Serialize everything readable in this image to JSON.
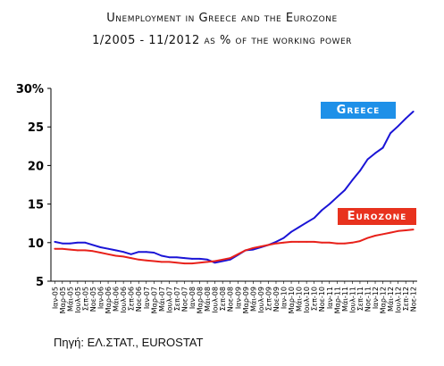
{
  "title_line1": "Unemployment in Greece and the Eurozone",
  "title_line2": "1/2005 - 11/2012 as % of the working power",
  "source": "Πηγή: ΕΛ.ΣΤΑΤ., EUROSTAT",
  "colors": {
    "greece": "#1a14d6",
    "eurozone": "#e8211a",
    "greece_badge": "#1e90e8",
    "eurozone_badge": "#e8321e"
  },
  "chart_data": {
    "type": "line",
    "ylim": [
      5,
      30
    ],
    "yticks": [
      "5",
      "10",
      "15",
      "20",
      "25",
      "30%"
    ],
    "grid": false,
    "x_labels": [
      "Ιαν-05",
      "Μαρ-05",
      "Μάι-05",
      "Ιουλ-05",
      "Σεπ-05",
      "Νοε-05",
      "Ιαν-06",
      "Μαρ-06",
      "Μάι-06",
      "Ιουλ-06",
      "Σεπ-06",
      "Νοε-06",
      "Ιαν-07",
      "Μαρ-07",
      "Μάι-07",
      "Ιουλ-07",
      "Σεπ-07",
      "Νοε-07",
      "Ιαν-08",
      "Μαρ-08",
      "Μάι-08",
      "Ιουλ-08",
      "Σεπ-08",
      "Νοε-08",
      "Ιαν-09",
      "Μαρ-09",
      "Μάι-09",
      "Ιουλ-09",
      "Σεπ-09",
      "Νοε-09",
      "Ιαν-10",
      "Μαρ-10",
      "Μάι-10",
      "Ιουλ-10",
      "Σεπ-10",
      "Νοε-10",
      "Ιαν-11",
      "Μαρ-11",
      "Μάι-11",
      "Ιουλ-11",
      "Σεπ-11",
      "Νοε-11",
      "Ιαν-12",
      "Μαρ-12",
      "Μάι-12",
      "Ιουλ-12",
      "Σεπ-12",
      "Νοε-12"
    ],
    "series": [
      {
        "name": "Greece",
        "values": [
          10.1,
          9.9,
          9.9,
          10.0,
          10.0,
          9.7,
          9.4,
          9.2,
          9.0,
          8.8,
          8.5,
          8.8,
          8.8,
          8.7,
          8.3,
          8.1,
          8.1,
          8.0,
          7.9,
          7.9,
          7.8,
          7.4,
          7.6,
          7.8,
          8.4,
          9.0,
          9.1,
          9.4,
          9.7,
          10.1,
          10.6,
          11.4,
          12.0,
          12.6,
          13.2,
          14.2,
          15.0,
          15.9,
          16.8,
          18.1,
          19.3,
          20.8,
          21.6,
          22.3,
          24.2,
          25.1,
          26.1,
          27.0
        ]
      },
      {
        "name": "Eurozone",
        "values": [
          9.2,
          9.2,
          9.1,
          9.0,
          9.0,
          8.9,
          8.7,
          8.5,
          8.3,
          8.2,
          8.0,
          7.8,
          7.7,
          7.6,
          7.5,
          7.5,
          7.4,
          7.3,
          7.3,
          7.4,
          7.5,
          7.6,
          7.8,
          8.0,
          8.5,
          9.0,
          9.3,
          9.5,
          9.7,
          9.9,
          10.0,
          10.1,
          10.1,
          10.1,
          10.1,
          10.0,
          10.0,
          9.9,
          9.9,
          10.0,
          10.2,
          10.6,
          10.9,
          11.1,
          11.3,
          11.5,
          11.6,
          11.7
        ]
      }
    ]
  }
}
